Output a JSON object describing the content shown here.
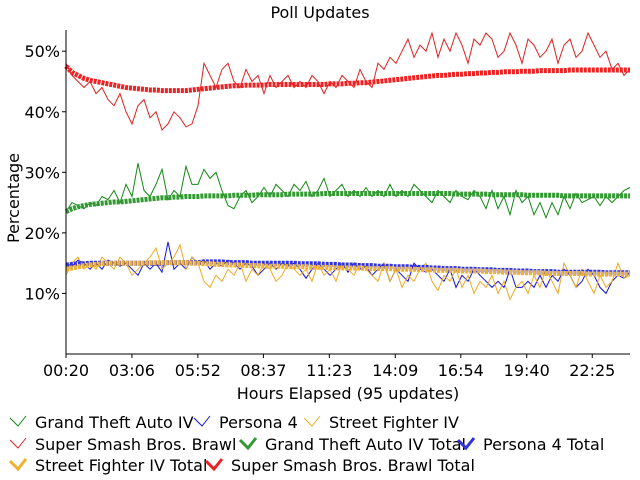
{
  "chart_data": {
    "type": "line",
    "title": "Poll Updates",
    "xlabel": "Hours Elapsed (95 updates)",
    "ylabel": "Percentage",
    "ylim": [
      0,
      53.5
    ],
    "xlim": [
      0.3333,
      24.0
    ],
    "x_ticks": [
      {
        "value": 0.3333,
        "label": "00:20"
      },
      {
        "value": 3.1,
        "label": "03:06"
      },
      {
        "value": 5.8667,
        "label": "05:52"
      },
      {
        "value": 8.6167,
        "label": "08:37"
      },
      {
        "value": 11.3833,
        "label": "11:23"
      },
      {
        "value": 14.15,
        "label": "14:09"
      },
      {
        "value": 16.9,
        "label": "16:54"
      },
      {
        "value": 19.6667,
        "label": "19:40"
      },
      {
        "value": 22.4167,
        "label": "22:25"
      }
    ],
    "y_ticks": [
      {
        "value": 10,
        "label": "10%"
      },
      {
        "value": 20,
        "label": "20%"
      },
      {
        "value": 30,
        "label": "30%"
      },
      {
        "value": 40,
        "label": "40%"
      },
      {
        "value": 50,
        "label": "50%"
      }
    ],
    "grid": false,
    "legend_position": "bottom",
    "series": [
      {
        "name": "Grand Theft Auto IV",
        "color": "#118811",
        "style": "thin",
        "values": [
          23.5,
          25,
          24.5,
          24,
          25,
          24.5,
          26,
          25.5,
          27,
          25,
          28,
          26,
          31.5,
          27,
          26,
          28,
          30.5,
          25.5,
          27,
          26,
          31,
          28,
          28,
          30.5,
          29,
          30,
          27,
          24.5,
          24,
          26,
          27,
          25,
          26,
          27.5,
          26,
          28,
          27,
          26,
          28,
          27,
          28.5,
          26,
          27,
          29,
          26,
          27,
          28,
          26,
          27,
          26,
          27.5,
          26,
          27,
          26,
          28,
          26,
          27,
          26,
          28,
          27,
          26,
          25,
          27,
          26,
          25,
          27,
          26,
          25.5,
          27,
          26,
          24,
          27,
          24,
          26,
          23,
          27,
          25,
          26,
          23,
          25,
          22.5,
          25,
          23,
          26,
          24,
          26.5,
          25,
          25.5,
          26,
          24.5,
          26,
          25,
          26,
          27,
          27.5
        ]
      },
      {
        "name": "Persona 4",
        "color": "#1111dd",
        "style": "thin",
        "values": [
          15,
          14.5,
          15.5,
          15,
          14,
          15,
          14,
          15.5,
          15,
          14.5,
          15,
          14,
          13,
          15,
          14,
          15,
          13.5,
          18.5,
          14,
          15,
          14,
          16,
          15,
          15.5,
          14,
          15,
          14.5,
          15.5,
          15,
          14,
          15,
          14.5,
          13,
          14,
          15,
          14,
          15,
          14.5,
          15,
          14,
          12.5,
          14,
          15,
          14,
          13,
          14,
          15,
          13.5,
          15,
          14,
          14.5,
          13,
          14,
          15,
          12,
          14,
          13,
          12,
          15,
          14,
          13.5,
          14,
          13,
          12,
          14,
          11,
          13,
          12,
          14,
          13,
          12,
          11,
          12,
          11,
          14,
          11,
          11,
          12,
          11,
          13,
          11,
          13,
          12,
          14,
          13,
          11,
          12,
          14,
          13,
          11,
          10,
          12,
          13,
          12.5,
          13.5
        ]
      },
      {
        "name": "Street Fighter IV",
        "color": "#eeaa22",
        "style": "thin",
        "values": [
          13,
          15,
          16,
          14,
          15,
          14,
          16,
          15,
          14,
          16,
          15,
          13,
          14,
          15,
          16,
          17.5,
          14,
          15,
          16,
          18,
          14,
          16,
          15,
          12,
          11,
          13,
          12,
          14,
          13,
          15,
          12,
          14,
          13,
          15,
          14,
          12,
          13,
          15,
          14,
          13,
          14,
          12,
          15,
          13,
          14,
          12,
          15,
          14,
          13,
          15,
          14,
          13,
          12,
          15,
          12,
          14,
          11,
          13,
          12,
          14,
          15,
          12,
          10.5,
          13,
          12,
          14,
          11,
          13,
          10,
          12,
          11,
          13,
          10,
          12,
          9,
          11,
          12,
          10,
          13,
          11,
          14,
          12,
          10,
          15,
          13,
          11,
          14,
          12,
          10,
          13,
          11,
          12,
          15,
          12.5,
          13
        ]
      },
      {
        "name": "Super Smash Bros. Brawl",
        "color": "#dd2222",
        "style": "thin",
        "values": [
          48,
          46,
          45,
          44,
          45,
          43,
          44,
          42,
          41,
          43,
          40,
          38,
          41,
          42,
          39,
          40,
          37,
          38,
          40,
          39,
          37.5,
          38,
          41,
          48,
          46,
          44,
          47,
          48,
          45,
          44,
          47,
          45,
          46,
          43,
          46,
          44,
          45,
          46,
          44,
          45,
          44,
          46,
          45,
          43,
          45,
          44,
          46,
          45,
          44,
          47,
          45,
          44,
          48,
          47,
          49,
          48,
          50,
          52,
          49,
          51,
          50,
          53,
          49,
          52,
          50,
          53,
          51,
          48,
          52,
          51,
          53,
          52,
          49,
          50,
          53,
          51,
          48,
          52,
          51,
          49,
          50,
          52,
          48,
          51,
          52,
          49,
          50,
          53,
          51,
          49,
          50,
          47,
          48,
          46,
          47
        ]
      },
      {
        "name": "Grand Theft Auto IV Total",
        "color": "#339933",
        "style": "thick",
        "values": [
          23.5,
          24,
          24.3,
          24.5,
          24.7,
          24.8,
          24.9,
          25,
          25.1,
          25.1,
          25.2,
          25.3,
          25.4,
          25.5,
          25.6,
          25.7,
          25.8,
          25.8,
          25.9,
          25.9,
          26,
          26,
          26,
          26.1,
          26.1,
          26.1,
          26.1,
          26.1,
          26.2,
          26.2,
          26.2,
          26.2,
          26.3,
          26.3,
          26.3,
          26.3,
          26.3,
          26.4,
          26.4,
          26.4,
          26.4,
          26.4,
          26.4,
          26.5,
          26.5,
          26.5,
          26.5,
          26.5,
          26.5,
          26.5,
          26.5,
          26.5,
          26.5,
          26.5,
          26.5,
          26.5,
          26.5,
          26.5,
          26.5,
          26.5,
          26.5,
          26.5,
          26.5,
          26.5,
          26.5,
          26.4,
          26.4,
          26.4,
          26.4,
          26.4,
          26.4,
          26.3,
          26.3,
          26.3,
          26.3,
          26.3,
          26.3,
          26.2,
          26.2,
          26.2,
          26.2,
          26.2,
          26.2,
          26.1,
          26.1,
          26.1,
          26.1,
          26.1,
          26.1,
          26.1,
          26.1,
          26.1,
          26.1,
          26.1,
          26.1
        ]
      },
      {
        "name": "Persona 4 Total",
        "color": "#3333dd",
        "style": "thick",
        "values": [
          14.7,
          14.8,
          14.9,
          14.9,
          15,
          15,
          15,
          15,
          15,
          15,
          15,
          15,
          15,
          15,
          15,
          15,
          15,
          15.1,
          15.1,
          15.1,
          15.1,
          15.1,
          15.1,
          15.2,
          15.2,
          15.2,
          15.2,
          15.1,
          15.1,
          15.1,
          15.1,
          15,
          15,
          15,
          15,
          15,
          15,
          15,
          15,
          14.9,
          14.9,
          14.9,
          14.9,
          14.8,
          14.8,
          14.8,
          14.7,
          14.7,
          14.7,
          14.6,
          14.6,
          14.6,
          14.5,
          14.5,
          14.5,
          14.4,
          14.4,
          14.4,
          14.3,
          14.3,
          14.3,
          14.2,
          14.2,
          14.1,
          14.1,
          14.1,
          14,
          14,
          14,
          13.9,
          13.9,
          13.9,
          13.8,
          13.8,
          13.8,
          13.7,
          13.7,
          13.7,
          13.6,
          13.6,
          13.6,
          13.6,
          13.5,
          13.5,
          13.5,
          13.5,
          13.5,
          13.5,
          13.5,
          13.5,
          13.4,
          13.4,
          13.4,
          13.4,
          13.4
        ]
      },
      {
        "name": "Street Fighter IV Total",
        "color": "#f0b030",
        "style": "thick",
        "values": [
          14,
          14.2,
          14.4,
          14.6,
          14.7,
          14.8,
          14.9,
          15,
          15,
          15,
          15,
          15,
          15,
          15,
          15.1,
          15.1,
          15.1,
          15.1,
          15.1,
          15.1,
          15.1,
          15,
          15,
          14.9,
          14.9,
          14.8,
          14.8,
          14.7,
          14.7,
          14.7,
          14.6,
          14.6,
          14.6,
          14.5,
          14.5,
          14.5,
          14.5,
          14.4,
          14.4,
          14.4,
          14.4,
          14.3,
          14.3,
          14.3,
          14.3,
          14.2,
          14.2,
          14.2,
          14.2,
          14.2,
          14.1,
          14.1,
          14.1,
          14.1,
          14.1,
          14,
          14,
          14,
          14,
          13.9,
          13.9,
          13.9,
          13.8,
          13.8,
          13.8,
          13.8,
          13.7,
          13.7,
          13.7,
          13.7,
          13.6,
          13.6,
          13.6,
          13.5,
          13.5,
          13.5,
          13.4,
          13.4,
          13.4,
          13.4,
          13.3,
          13.3,
          13.3,
          13.3,
          13.3,
          13.3,
          13.3,
          13.2,
          13.2,
          13.2,
          13.2,
          13.2,
          13.2,
          13.2,
          13.2
        ]
      },
      {
        "name": "Super Smash Bros. Brawl Total",
        "color": "#ee2222",
        "style": "thick",
        "values": [
          47.5,
          46.5,
          46,
          45.5,
          45.2,
          45,
          44.8,
          44.6,
          44.4,
          44.2,
          44,
          43.9,
          43.8,
          43.7,
          43.6,
          43.6,
          43.5,
          43.5,
          43.5,
          43.5,
          43.5,
          43.6,
          43.7,
          43.8,
          43.9,
          44,
          44.1,
          44.2,
          44.3,
          44.3,
          44.4,
          44.4,
          44.4,
          44.4,
          44.5,
          44.5,
          44.5,
          44.5,
          44.5,
          44.5,
          44.5,
          44.5,
          44.5,
          44.5,
          44.6,
          44.6,
          44.6,
          44.7,
          44.7,
          44.8,
          44.8,
          44.9,
          45,
          45.1,
          45.2,
          45.3,
          45.4,
          45.5,
          45.6,
          45.7,
          45.8,
          45.9,
          46,
          46,
          46.1,
          46.2,
          46.2,
          46.3,
          46.3,
          46.4,
          46.4,
          46.5,
          46.5,
          46.6,
          46.6,
          46.6,
          46.7,
          46.7,
          46.7,
          46.8,
          46.8,
          46.8,
          46.8,
          46.8,
          46.9,
          46.9,
          46.9,
          46.9,
          46.9,
          46.9,
          46.9,
          46.9,
          46.9,
          46.9,
          46.9
        ]
      }
    ]
  }
}
